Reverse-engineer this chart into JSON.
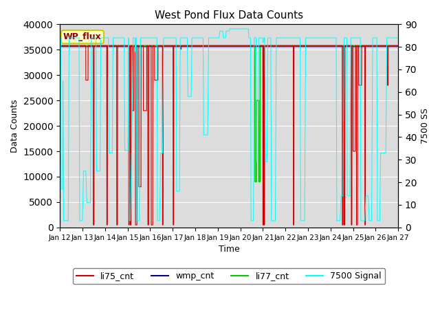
{
  "title": "West Pond Flux Data Counts",
  "xlabel": "Time",
  "ylabel_left": "Data Counts",
  "ylabel_right": "7500 SS",
  "wp_flux_label": "WP_flux",
  "background_color": "#dcdcdc",
  "legend_items": [
    "li75_cnt",
    "wmp_cnt",
    "li77_cnt",
    "7500 Signal"
  ],
  "legend_colors": [
    "#cc0000",
    "#00008b",
    "#00cc00",
    "#00cccc"
  ],
  "xtick_labels": [
    "Jan 12",
    "Jan 13",
    "Jan 14",
    "Jan 15",
    "Jan 16",
    "Jan 17",
    "Jan 18",
    "Jan 19",
    "Jan 20",
    "Jan 21",
    "Jan 22",
    "Jan 23",
    "Jan 24",
    "Jan 25",
    "Jan 26",
    "Jan 27"
  ],
  "right_yticks": [
    0,
    10,
    20,
    30,
    40,
    50,
    60,
    70,
    80,
    90
  ],
  "left_yticks": [
    0,
    5000,
    10000,
    15000,
    20000,
    25000,
    30000,
    35000,
    40000
  ],
  "ylim_left": [
    0,
    40000
  ],
  "ylim_right": [
    0,
    90
  ],
  "xlim": [
    0,
    15
  ],
  "flat_val": 35800,
  "signal_high": 84,
  "figsize": [
    6.4,
    4.8
  ],
  "dpi": 100
}
